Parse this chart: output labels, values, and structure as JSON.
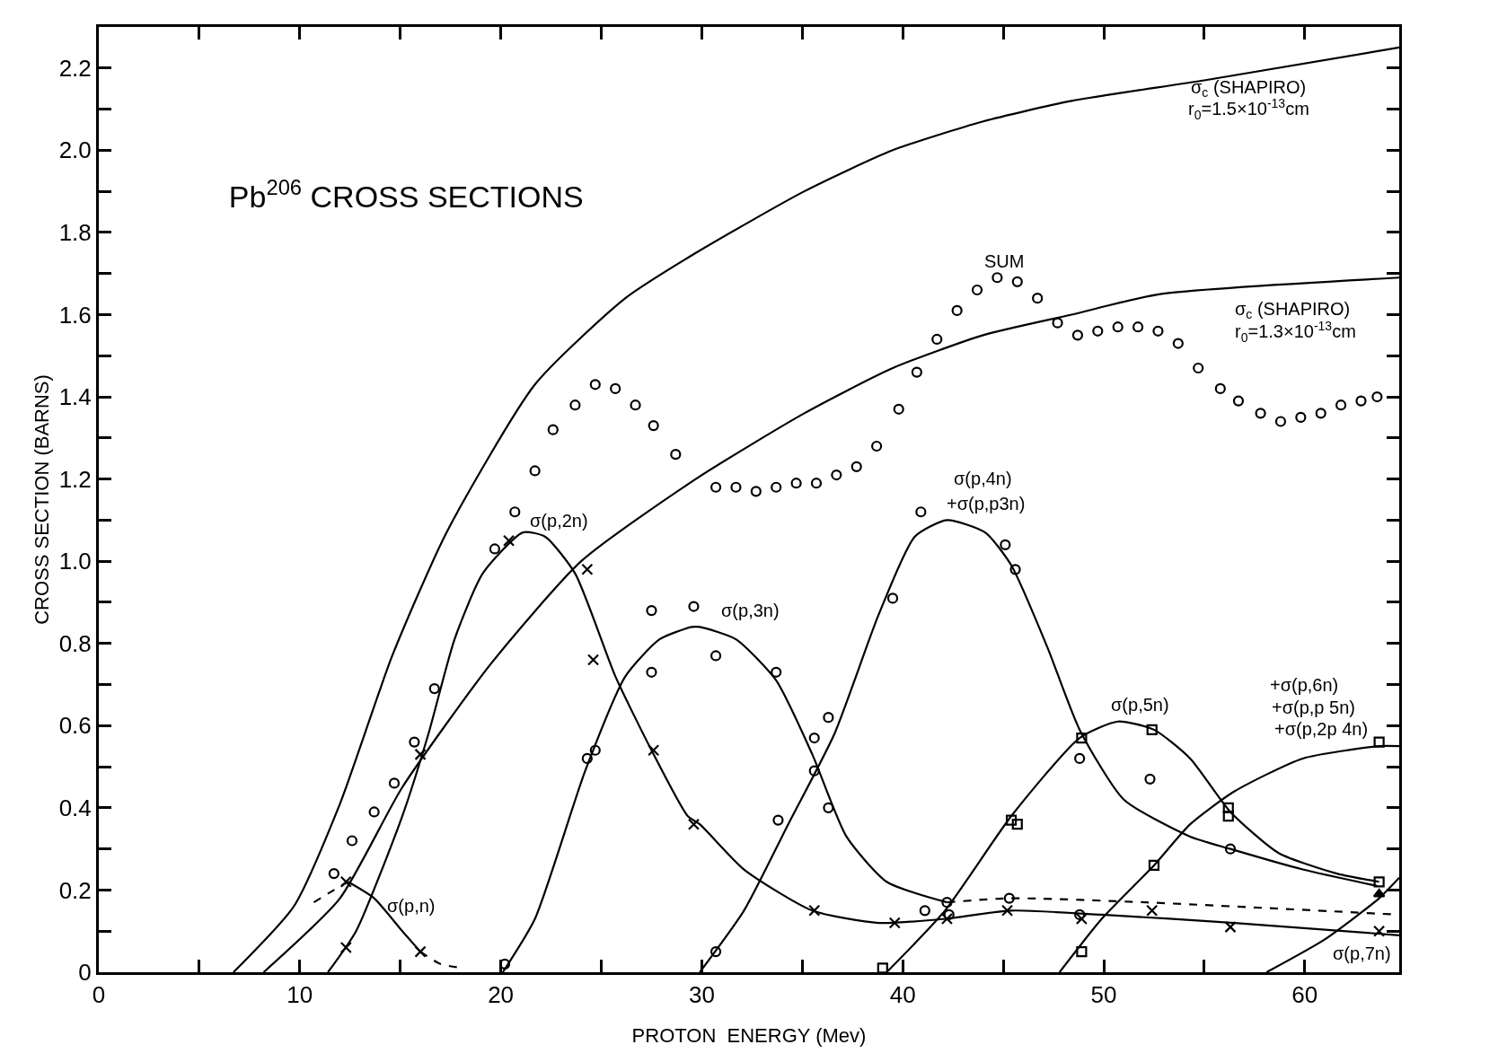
{
  "chart_data": {
    "type": "line",
    "title": "Pb$^{206}$ CROSS SECTIONS",
    "xlabel": "PROTON  ENERGY (Mev)",
    "ylabel": "CROSS SECTION (BARNS)",
    "xlim": [
      0,
      64.7
    ],
    "ylim": [
      0,
      2.3
    ],
    "xticks": [
      0,
      {
        "value": 5,
        "label": null
      },
      10,
      {
        "value": 15,
        "label": null
      },
      20,
      {
        "value": 25,
        "label": null
      },
      30,
      {
        "value": 35,
        "label": null
      },
      40,
      {
        "value": 45,
        "label": null
      },
      50,
      {
        "value": 55,
        "label": null
      },
      60
    ],
    "yticks": [
      0,
      {
        "value": 0.1,
        "label": null
      },
      0.2,
      {
        "value": 0.3,
        "label": null
      },
      0.4,
      {
        "value": 0.5,
        "label": null
      },
      0.6,
      {
        "value": 0.7,
        "label": null
      },
      0.8,
      {
        "value": 0.9,
        "label": null
      },
      {
        "value": 1.0,
        "label": "1.0"
      },
      {
        "value": 1.1,
        "label": null
      },
      1.2,
      {
        "value": 1.3,
        "label": null
      },
      1.4,
      {
        "value": 1.5,
        "label": null
      },
      1.6,
      {
        "value": 1.7,
        "label": null
      },
      1.8,
      {
        "value": 1.9,
        "label": null
      },
      {
        "value": 2.0,
        "label": "2.0"
      },
      {
        "value": 2.1,
        "label": null
      },
      2.2
    ],
    "grid": false,
    "series": [
      {
        "type": "line",
        "line_style": "solid",
        "color": "#000000",
        "x": [
          6.7,
          9.7,
          12,
          14.6,
          17.3,
          21.7,
          26.2,
          29.7,
          35.1,
          39.5,
          44,
          48.4,
          55,
          64.7
        ],
        "values": [
          0,
          0.16,
          0.41,
          0.77,
          1.07,
          1.43,
          1.64,
          1.75,
          1.9,
          2.0,
          2.07,
          2.12,
          2.17,
          2.25
        ]
      },
      {
        "type": "line",
        "line_style": "solid",
        "color": "#000000",
        "x": [
          8.2,
          12,
          15.1,
          19.5,
          24,
          29.7,
          35.1,
          39.5,
          44,
          48.4,
          52.8,
          64.7
        ],
        "values": [
          0,
          0.18,
          0.45,
          0.75,
          1.0,
          1.2,
          1.36,
          1.47,
          1.55,
          1.6,
          1.65,
          1.69
        ]
      },
      {
        "type": "scatter",
        "marker": "circle",
        "color": "#000000",
        "x": [
          11.7,
          12.6,
          13.7,
          14.7,
          15.7,
          16.7,
          19.7,
          20.7,
          21.7,
          22.6,
          23.7,
          24.7,
          25.7,
          26.7,
          27.6,
          28.7,
          30.7,
          31.7,
          32.7,
          33.7,
          34.7,
          35.7,
          36.7,
          37.7,
          38.7,
          39.8,
          40.7,
          41.7,
          42.7,
          43.7,
          44.7,
          45.7,
          46.7,
          47.7,
          48.7,
          49.7,
          50.7,
          51.7,
          52.7,
          53.7,
          54.7,
          55.8,
          56.7,
          57.8,
          58.8,
          59.8,
          60.8,
          61.8,
          62.8,
          63.6
        ],
        "values": [
          0.24,
          0.32,
          0.39,
          0.46,
          0.56,
          0.69,
          1.03,
          1.12,
          1.22,
          1.32,
          1.38,
          1.43,
          1.42,
          1.38,
          1.33,
          1.26,
          1.18,
          1.18,
          1.17,
          1.18,
          1.19,
          1.19,
          1.21,
          1.23,
          1.28,
          1.37,
          1.46,
          1.54,
          1.61,
          1.66,
          1.69,
          1.68,
          1.64,
          1.58,
          1.55,
          1.56,
          1.57,
          1.57,
          1.56,
          1.53,
          1.47,
          1.42,
          1.39,
          1.36,
          1.34,
          1.35,
          1.36,
          1.38,
          1.39,
          1.4
        ]
      },
      {
        "type": "line",
        "line_style": "dashed",
        "color": "#000000",
        "x": [
          10.7,
          11.7,
          12.4
        ],
        "values": [
          0.17,
          0.2,
          0.22
        ]
      },
      {
        "type": "line",
        "line_style": "solid",
        "color": "#000000",
        "x": [
          12.4,
          13.7,
          15.1,
          16.0
        ],
        "values": [
          0.22,
          0.18,
          0.1,
          0.05
        ]
      },
      {
        "type": "line",
        "line_style": "dashed",
        "color": "#000000",
        "x": [
          16.0,
          17.0,
          18.2
        ],
        "values": [
          0.05,
          0.02,
          0.01
        ]
      },
      {
        "type": "scatter",
        "marker": "cross",
        "color": "#000000",
        "x": [
          12.3,
          16.0
        ],
        "values": [
          0.22,
          0.05
        ]
      },
      {
        "type": "line",
        "line_style": "solid",
        "color": "#000000",
        "x": [
          11.4,
          12.8,
          15.1,
          16.4,
          17.7,
          19.1,
          21.1,
          22.2,
          23.7,
          25.7,
          27.5,
          29.3,
          29.9,
          32.1,
          35.5,
          38.8,
          42.1,
          45.4,
          49.9,
          56.5,
          64.7
        ],
        "values": [
          0,
          0.1,
          0.38,
          0.58,
          0.81,
          0.97,
          1.07,
          1.06,
          0.97,
          0.72,
          0.54,
          0.38,
          0.36,
          0.25,
          0.15,
          0.12,
          0.13,
          0.15,
          0.14,
          0.12,
          0.09
        ]
      },
      {
        "type": "scatter",
        "marker": "cross",
        "color": "#000000",
        "x": [
          12.3,
          16.0,
          20.4,
          24.3,
          24.6,
          27.6,
          29.6,
          35.6,
          39.6,
          42.2,
          45.2,
          48.9,
          52.4,
          56.3,
          63.7
        ],
        "values": [
          0.06,
          0.53,
          1.05,
          0.98,
          0.76,
          0.54,
          0.36,
          0.15,
          0.12,
          0.13,
          0.15,
          0.13,
          0.15,
          0.11,
          0.1
        ]
      },
      {
        "type": "line",
        "line_style": "solid",
        "color": "#000000",
        "x": [
          20.1,
          21.7,
          24.2,
          26.2,
          27.9,
          29.5,
          29.9,
          31.7,
          33.7,
          35.5,
          37.2,
          39.2,
          42.2
        ],
        "values": [
          0,
          0.13,
          0.49,
          0.72,
          0.81,
          0.84,
          0.84,
          0.81,
          0.71,
          0.53,
          0.33,
          0.22,
          0.17
        ]
      },
      {
        "type": "line",
        "line_style": "dashed",
        "color": "#000000",
        "x": [
          42.2,
          45.3,
          52.1,
          64.7
        ],
        "values": [
          0.17,
          0.18,
          0.17,
          0.14
        ]
      },
      {
        "type": "scatter",
        "marker": "circle",
        "color": "#000000",
        "x": [
          20.2,
          24.3,
          24.7,
          27.5,
          27.5,
          29.6,
          30.7,
          33.7,
          35.6,
          36.3,
          41.1,
          42.2,
          42.3,
          45.3,
          48.8
        ],
        "values": [
          0.02,
          0.52,
          0.54,
          0.88,
          0.73,
          0.89,
          0.77,
          0.73,
          0.57,
          0.4,
          0.15,
          0.17,
          0.14,
          0.18,
          0.14
        ]
      },
      {
        "type": "line",
        "line_style": "solid",
        "color": "#000000",
        "x": [
          29.9,
          32.1,
          34.3,
          36.6,
          38.8,
          40.6,
          42.2,
          44.1,
          45.4,
          47.2,
          48.8,
          51.0,
          54.3,
          56.3,
          59.9,
          63.6
        ],
        "values": [
          0,
          0.15,
          0.36,
          0.58,
          0.87,
          1.06,
          1.1,
          1.07,
          0.99,
          0.79,
          0.59,
          0.42,
          0.33,
          0.3,
          0.25,
          0.21
        ]
      },
      {
        "type": "scatter",
        "marker": "circle",
        "color": "#000000",
        "x": [
          30.7,
          33.8,
          35.6,
          36.3,
          39.5,
          40.9,
          45.1,
          45.6,
          48.8,
          52.3,
          56.3
        ],
        "values": [
          0.05,
          0.37,
          0.49,
          0.62,
          0.91,
          1.12,
          1.04,
          0.98,
          0.52,
          0.47,
          0.3
        ]
      },
      {
        "type": "line",
        "line_style": "solid",
        "color": "#000000",
        "x": [
          39.2,
          42.1,
          45.4,
          48.8,
          50.7,
          52.5,
          54.3,
          56.3,
          58.7,
          61.6,
          63.7
        ],
        "values": [
          0,
          0.15,
          0.38,
          0.57,
          0.61,
          0.59,
          0.52,
          0.39,
          0.29,
          0.24,
          0.22
        ]
      },
      {
        "type": "scatter",
        "marker": "square",
        "color": "#000000",
        "x": [
          39.0,
          45.4,
          45.7,
          48.9,
          52.4,
          56.2,
          63.7
        ],
        "values": [
          0.01,
          0.37,
          0.36,
          0.57,
          0.59,
          0.38,
          0.22
        ]
      },
      {
        "type": "line",
        "line_style": "solid",
        "color": "#000000",
        "x": [
          47.8,
          49.9,
          52.5,
          54.3,
          56.5,
          59.9,
          63.7,
          64.7
        ],
        "values": [
          0,
          0.13,
          0.26,
          0.36,
          0.44,
          0.52,
          0.55,
          0.55
        ]
      },
      {
        "type": "scatter",
        "marker": "square",
        "color": "#000000",
        "x": [
          48.9,
          52.5,
          56.2,
          63.7
        ],
        "values": [
          0.05,
          0.26,
          0.4,
          0.56
        ]
      },
      {
        "type": "line",
        "line_style": "solid",
        "color": "#000000",
        "x": [
          58.1,
          61.0,
          63.7,
          64.7
        ],
        "values": [
          0,
          0.08,
          0.18,
          0.23
        ]
      },
      {
        "type": "scatter",
        "marker": "triangle",
        "color": "#000000",
        "x": [
          63.7
        ],
        "values": [
          0.19
        ]
      }
    ],
    "annotations": [
      "σ$_{c}$ (SHAPIRO)",
      "r$_{0}$=1.5×10$^{-13}$cm",
      "σ$_{c}$ (SHAPIRO)",
      "r$_{0}$=1.3×10$^{-13}$cm",
      "SUM",
      "σ(p,4n)",
      "+σ(p,p3n)",
      "σ(p,2n)",
      "σ(p,3n)",
      "σ(p,n)",
      "σ(p,5n)",
      "+σ(p,6n)",
      "+σ(p,p 5n)",
      "+σ(p,2p 4n)",
      "σ(p,7n)"
    ]
  }
}
